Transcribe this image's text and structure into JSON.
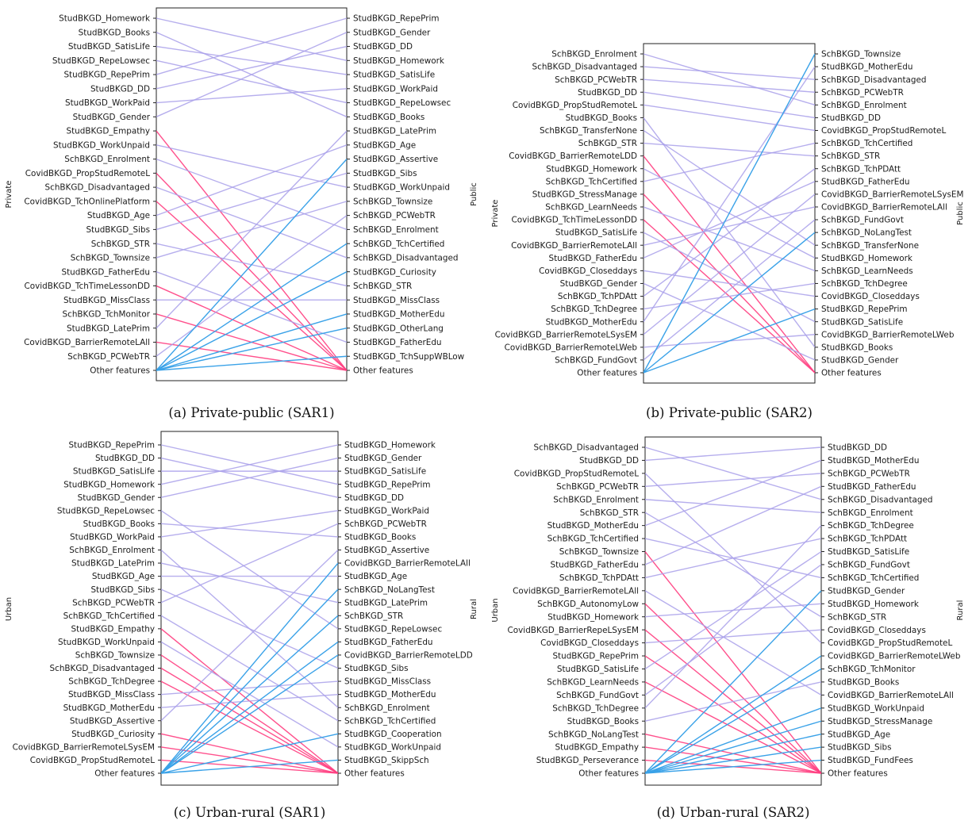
{
  "colors": {
    "purple": "#a9a0ea",
    "pink": "#ff3d7f",
    "blue": "#3aa2e8"
  },
  "chart_data": [
    {
      "type": "bump",
      "caption": "(a) Private-public (SAR1)",
      "left_axis_label": "Private",
      "right_axis_label": "Public",
      "left": [
        "StudBKGD_Homework",
        "StudBKGD_Books",
        "StudBKGD_SatisLife",
        "StudBKGD_RepeLowsec",
        "StudBKGD_RepePrim",
        "StudBKGD_DD",
        "StudBKGD_WorkPaid",
        "StudBKGD_Gender",
        "StudBKGD_Empathy",
        "StudBKGD_WorkUnpaid",
        "SchBKGD_Enrolment",
        "CovidBKGD_PropStudRemoteL",
        "SchBKGD_Disadvantaged",
        "CovidBKGD_TchOnlinePlatform",
        "StudBKGD_Age",
        "StudBKGD_Sibs",
        "SchBKGD_STR",
        "SchBKGD_Townsize",
        "StudBKGD_FatherEdu",
        "CovidBKGD_TchTimeLessonDD",
        "StudBKGD_MissClass",
        "SchBKGD_TchMonitor",
        "StudBKGD_LatePrim",
        "CovidBKGD_BarrierRemoteLAll",
        "SchBKGD_PCWebTR",
        "Other features"
      ],
      "right": [
        "StudBKGD_RepePrim",
        "StudBKGD_Gender",
        "StudBKGD_DD",
        "StudBKGD_Homework",
        "StudBKGD_SatisLife",
        "StudBKGD_WorkPaid",
        "StudBKGD_RepeLowsec",
        "StudBKGD_Books",
        "StudBKGD_LatePrim",
        "StudBKGD_Age",
        "StudBKGD_Assertive",
        "StudBKGD_Sibs",
        "StudBKGD_WorkUnpaid",
        "SchBKGD_Townsize",
        "SchBKGD_PCWebTR",
        "SchBKGD_Enrolment",
        "SchBKGD_TchCertified",
        "SchBKGD_Disadvantaged",
        "StudBKGD_Curiosity",
        "SchBKGD_STR",
        "StudBKGD_MissClass",
        "StudBKGD_MotherEdu",
        "StudBKGD_OtherLang",
        "StudBKGD_FatherEdu",
        "StudBKGD_TchSuppWBLow",
        "Other features"
      ]
    },
    {
      "type": "bump",
      "caption": "(b) Private-public (SAR2)",
      "left_axis_label": "Private",
      "right_axis_label": "Public",
      "left": [
        "SchBKGD_Enrolment",
        "SchBKGD_Disadvantaged",
        "SchBKGD_PCWebTR",
        "StudBKGD_DD",
        "CovidBKGD_PropStudRemoteL",
        "StudBKGD_Books",
        "SchBKGD_TransferNone",
        "SchBKGD_STR",
        "CovidBKGD_BarrierRemoteLDD",
        "StudBKGD_Homework",
        "SchBKGD_TchCertified",
        "StudBKGD_StressManage",
        "SchBKGD_LearnNeeds",
        "CovidBKGD_TchTimeLessonDD",
        "StudBKGD_SatisLife",
        "CovidBKGD_BarrierRemoteLAll",
        "StudBKGD_FatherEdu",
        "CovidBKGD_Closeddays",
        "StudBKGD_Gender",
        "SchBKGD_TchPDAtt",
        "SchBKGD_TchDegree",
        "StudBKGD_MotherEdu",
        "CovidBKGD_BarrierRemoteLSysEM",
        "CovidBKGD_BarrierRemoteLWeb",
        "SchBKGD_FundGovt",
        "Other features"
      ],
      "right": [
        "SchBKGD_Townsize",
        "StudBKGD_MotherEdu",
        "SchBKGD_Disadvantaged",
        "SchBKGD_PCWebTR",
        "SchBKGD_Enrolment",
        "StudBKGD_DD",
        "CovidBKGD_PropStudRemoteL",
        "SchBKGD_TchCertified",
        "SchBKGD_STR",
        "SchBKGD_TchPDAtt",
        "StudBKGD_FatherEdu",
        "CovidBKGD_BarrierRemoteLSysEM",
        "CovidBKGD_BarrierRemoteLAll",
        "SchBKGD_FundGovt",
        "SchBKGD_NoLangTest",
        "SchBKGD_TransferNone",
        "StudBKGD_Homework",
        "SchBKGD_LearnNeeds",
        "SchBKGD_TchDegree",
        "CovidBKGD_Closeddays",
        "StudBKGD_RepePrim",
        "StudBKGD_SatisLife",
        "CovidBKGD_BarrierRemoteLWeb",
        "StudBKGD_Books",
        "StudBKGD_Gender",
        "Other features"
      ]
    },
    {
      "type": "bump",
      "caption": "(c) Urban-rural (SAR1)",
      "left_axis_label": "Urban",
      "right_axis_label": "Rural",
      "left": [
        "StudBKGD_RepePrim",
        "StudBKGD_DD",
        "StudBKGD_SatisLife",
        "StudBKGD_Homework",
        "StudBKGD_Gender",
        "StudBKGD_RepeLowsec",
        "StudBKGD_Books",
        "StudBKGD_WorkPaid",
        "SchBKGD_Enrolment",
        "StudBKGD_LatePrim",
        "StudBKGD_Age",
        "StudBKGD_Sibs",
        "SchBKGD_PCWebTR",
        "SchBKGD_TchCertified",
        "StudBKGD_Empathy",
        "StudBKGD_WorkUnpaid",
        "SchBKGD_Townsize",
        "SchBKGD_Disadvantaged",
        "SchBKGD_TchDegree",
        "StudBKGD_MissClass",
        "StudBKGD_MotherEdu",
        "StudBKGD_Assertive",
        "StudBKGD_Curiosity",
        "CovidBKGD_BarrierRemoteLSysEM",
        "CovidBKGD_PropStudRemoteL",
        "Other features"
      ],
      "right": [
        "StudBKGD_Homework",
        "StudBKGD_Gender",
        "StudBKGD_SatisLife",
        "StudBKGD_RepePrim",
        "StudBKGD_DD",
        "StudBKGD_WorkPaid",
        "SchBKGD_PCWebTR",
        "StudBKGD_Books",
        "StudBKGD_Assertive",
        "CovidBKGD_BarrierRemoteLAll",
        "StudBKGD_Age",
        "SchBKGD_NoLangTest",
        "StudBKGD_LatePrim",
        "SchBKGD_STR",
        "StudBKGD_RepeLowsec",
        "StudBKGD_FatherEdu",
        "CovidBKGD_BarrierRemoteLDD",
        "StudBKGD_Sibs",
        "StudBKGD_MissClass",
        "StudBKGD_MotherEdu",
        "SchBKGD_Enrolment",
        "SchBKGD_TchCertified",
        "StudBKGD_Cooperation",
        "StudBKGD_WorkUnpaid",
        "StudBKGD_SkippSch",
        "Other features"
      ]
    },
    {
      "type": "bump",
      "caption": "(d) Urban-rural (SAR2)",
      "left_axis_label": "Urban",
      "right_axis_label": "Rural",
      "left": [
        "SchBKGD_Disadvantaged",
        "StudBKGD_DD",
        "CovidBKGD_PropStudRemoteL",
        "SchBKGD_PCWebTR",
        "SchBKGD_Enrolment",
        "SchBKGD_STR",
        "StudBKGD_MotherEdu",
        "SchBKGD_TchCertified",
        "SchBKGD_Townsize",
        "StudBKGD_FatherEdu",
        "SchBKGD_TchPDAtt",
        "CovidBKGD_BarrierRemoteLAll",
        "SchBKGD_AutonomyLow",
        "StudBKGD_Homework",
        "CovidBKGD_BarrierRepeLSysEM",
        "CovidBKGD_Closeddays",
        "StudBKGD_RepePrim",
        "StudBKGD_SatisLife",
        "SchBKGD_LearnNeeds",
        "SchBKGD_FundGovt",
        "SchBKGD_TchDegree",
        "StudBKGD_Books",
        "SchBKGD_NoLangTest",
        "StudBKGD_Empathy",
        "StudBKGD_Perseverance",
        "Other features"
      ],
      "right": [
        "StudBKGD_DD",
        "StudBKGD_MotherEdu",
        "SchBKGD_PCWebTR",
        "StudBKGD_FatherEdu",
        "SchBKGD_Disadvantaged",
        "SchBKGD_Enrolment",
        "SchBKGD_TchDegree",
        "SchBKGD_TchPDAtt",
        "StudBKGD_SatisLife",
        "SchBKGD_FundGovt",
        "SchBKGD_TchCertified",
        "StudBKGD_Gender",
        "StudBKGD_Homework",
        "SchBKGD_STR",
        "CovidBKGD_Closeddays",
        "CovidBKGD_PropStudRemoteL",
        "CovidBKGD_BarrierRemoteLWeb",
        "SchBKGD_TchMonitor",
        "StudBKGD_Books",
        "CovidBKGD_BarrierRemoteLAll",
        "StudBKGD_WorkUnpaid",
        "StudBKGD_StressManage",
        "StudBKGD_Age",
        "StudBKGD_Sibs",
        "StudBKGD_FundFees",
        "Other features"
      ]
    }
  ]
}
